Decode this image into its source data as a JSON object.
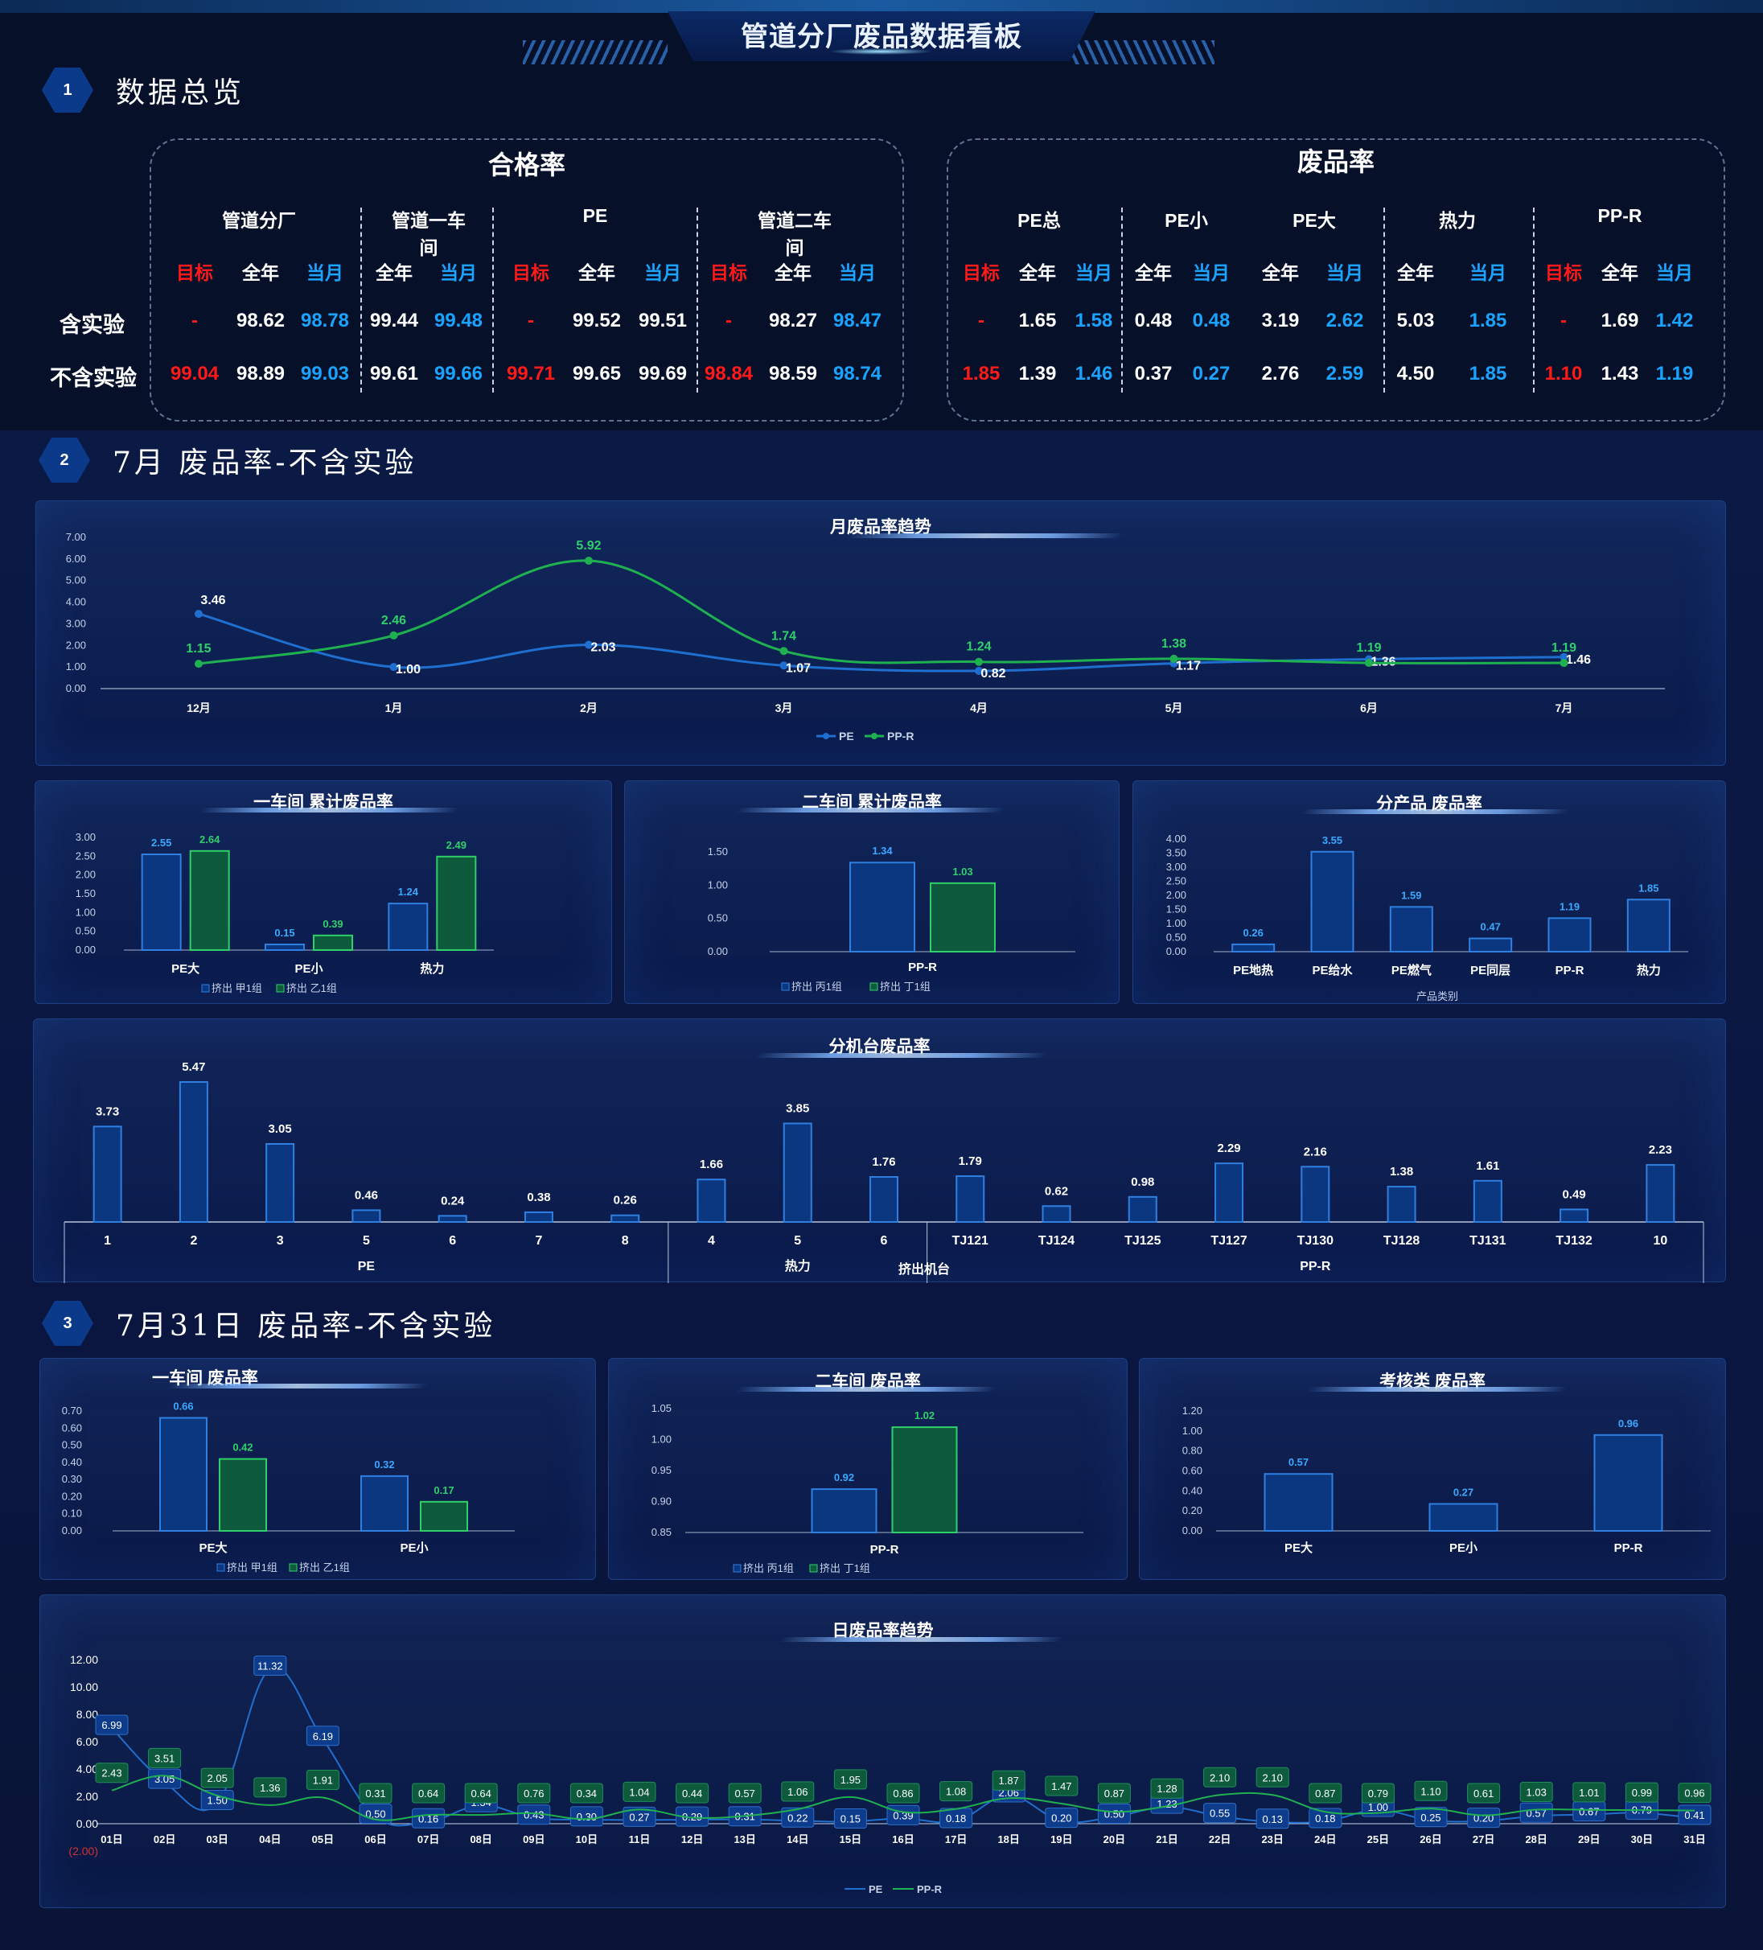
{
  "page": {
    "title": "管道分厂废品数据看板"
  },
  "sections": {
    "s1": {
      "num": "1",
      "title": "数据总览"
    },
    "s2": {
      "num": "2",
      "title": "7月 废品率-不含实验"
    },
    "s3": {
      "num": "3",
      "title": "7月31日 废品率-不含实验"
    }
  },
  "overview": {
    "rows": [
      "含实验",
      "不含实验"
    ],
    "pass": {
      "title": "合格率",
      "groups": [
        "管道分厂",
        "管道一车间",
        "PE",
        "管道二车间"
      ],
      "cols": [
        {
          "h": "目标",
          "c": "red",
          "v": [
            "-",
            "99.04"
          ]
        },
        {
          "h": "全年",
          "c": "white",
          "v": [
            "98.62",
            "98.89"
          ]
        },
        {
          "h": "当月",
          "c": "blue",
          "v": [
            "98.78",
            "99.03"
          ]
        },
        {
          "h": "全年",
          "c": "white",
          "v": [
            "99.44",
            "99.61"
          ]
        },
        {
          "h": "当月",
          "c": "blue",
          "v": [
            "99.48",
            "99.66"
          ]
        },
        {
          "h": "目标",
          "c": "red",
          "v": [
            "-",
            "99.71"
          ]
        },
        {
          "h": "全年",
          "c": "white",
          "v": [
            "99.52",
            "99.65"
          ]
        },
        {
          "h": "当月",
          "c": "white",
          "v": [
            "99.51",
            "99.69"
          ]
        },
        {
          "h": "目标",
          "c": "red",
          "v": [
            "-",
            "98.84"
          ]
        },
        {
          "h": "全年",
          "c": "white",
          "v": [
            "98.27",
            "98.59"
          ]
        },
        {
          "h": "当月",
          "c": "blue",
          "v": [
            "98.47",
            "98.74"
          ]
        }
      ]
    },
    "scrap": {
      "title": "废品率",
      "groups": [
        "PE总",
        "PE小",
        "PE大",
        "热力",
        "PP-R"
      ],
      "cols": [
        {
          "h": "目标",
          "c": "red",
          "v": [
            "-",
            "1.85"
          ]
        },
        {
          "h": "全年",
          "c": "white",
          "v": [
            "1.65",
            "1.39"
          ]
        },
        {
          "h": "当月",
          "c": "blue",
          "v": [
            "1.58",
            "1.46"
          ]
        },
        {
          "h": "全年",
          "c": "white",
          "v": [
            "0.48",
            "0.37"
          ]
        },
        {
          "h": "当月",
          "c": "blue",
          "v": [
            "0.48",
            "0.27"
          ]
        },
        {
          "h": "全年",
          "c": "white",
          "v": [
            "3.19",
            "2.76"
          ]
        },
        {
          "h": "当月",
          "c": "blue",
          "v": [
            "2.62",
            "2.59"
          ]
        },
        {
          "h": "全年",
          "c": "white",
          "v": [
            "5.03",
            "4.50"
          ]
        },
        {
          "h": "当月",
          "c": "blue",
          "v": [
            "1.85",
            "1.85"
          ]
        },
        {
          "h": "目标",
          "c": "red",
          "v": [
            "-",
            "1.10"
          ]
        },
        {
          "h": "全年",
          "c": "white",
          "v": [
            "1.69",
            "1.43"
          ]
        },
        {
          "h": "当月",
          "c": "blue",
          "v": [
            "1.42",
            "1.19"
          ]
        }
      ]
    }
  },
  "chart_data": [
    {
      "id": "monthly",
      "type": "line",
      "title": "月废品率趋势",
      "categories": [
        "12月",
        "1月",
        "2月",
        "3月",
        "4月",
        "5月",
        "6月",
        "7月"
      ],
      "ylim": [
        0,
        7
      ],
      "yticks": [
        "0.00",
        "1.00",
        "2.00",
        "3.00",
        "4.00",
        "5.00",
        "6.00",
        "7.00"
      ],
      "series": [
        {
          "name": "PE",
          "color": "#1f6fd0",
          "values": [
            3.46,
            1.0,
            2.03,
            1.07,
            0.82,
            1.17,
            1.36,
            1.46
          ]
        },
        {
          "name": "PP-R",
          "color": "#1fb050",
          "values": [
            1.15,
            2.46,
            5.92,
            1.74,
            1.24,
            1.38,
            1.19,
            1.19
          ]
        }
      ]
    },
    {
      "id": "ws1",
      "type": "bar",
      "title": "一车间 累计废品率",
      "categories": [
        "PE大",
        "PE小",
        "热力"
      ],
      "ylim": [
        0,
        3
      ],
      "yticks": [
        "0.00",
        "0.50",
        "1.00",
        "1.50",
        "2.00",
        "2.50",
        "3.00"
      ],
      "series": [
        {
          "name": "挤出 甲1组",
          "color": "#1f6fd0",
          "values": [
            2.55,
            0.15,
            1.24
          ]
        },
        {
          "name": "挤出 乙1组",
          "color": "#1fb050",
          "values": [
            2.64,
            0.39,
            2.49
          ]
        }
      ]
    },
    {
      "id": "ws2",
      "type": "bar",
      "title": "二车间 累计废品率",
      "categories": [
        "PP-R"
      ],
      "ylim": [
        0,
        1.5
      ],
      "yticks": [
        "0.00",
        "0.50",
        "1.00",
        "1.50"
      ],
      "series": [
        {
          "name": "挤出 丙1组",
          "color": "#1f6fd0",
          "values": [
            1.34
          ]
        },
        {
          "name": "挤出 丁1组",
          "color": "#1fb050",
          "values": [
            1.03
          ]
        }
      ]
    },
    {
      "id": "prod",
      "type": "bar",
      "title": "分产品 废品率",
      "xlabel": "产品类别",
      "categories": [
        "PE地热",
        "PE给水",
        "PE燃气",
        "PE同层",
        "PP-R",
        "热力"
      ],
      "ylim": [
        0,
        4
      ],
      "yticks": [
        "0.00",
        "0.50",
        "1.00",
        "1.50",
        "2.00",
        "2.50",
        "3.00",
        "3.50",
        "4.00"
      ],
      "series": [
        {
          "color": "#1f6fd0",
          "values": [
            0.26,
            3.55,
            1.59,
            0.47,
            1.19,
            1.85
          ]
        }
      ]
    },
    {
      "id": "machine",
      "type": "bar",
      "title": "分机台废品率",
      "xlabel": "挤出机台",
      "categories": [
        "1",
        "2",
        "3",
        "5",
        "6",
        "7",
        "8",
        "4",
        "5",
        "6",
        "TJ121",
        "TJ124",
        "TJ125",
        "TJ127",
        "TJ130",
        "TJ128",
        "TJ131",
        "TJ132",
        "10"
      ],
      "groups": [
        {
          "name": "PE",
          "from": 0,
          "to": 6
        },
        {
          "name": "热力",
          "from": 7,
          "to": 9
        },
        {
          "name": "PP-R",
          "from": 10,
          "to": 18
        }
      ],
      "ylim": [
        0,
        5.47
      ],
      "series": [
        {
          "color": "#1f6fd0",
          "values": [
            3.73,
            5.47,
            3.05,
            0.46,
            0.24,
            0.38,
            0.26,
            1.66,
            3.85,
            1.76,
            1.79,
            0.62,
            0.98,
            2.29,
            2.16,
            1.38,
            1.61,
            0.49,
            2.23
          ]
        }
      ]
    },
    {
      "id": "d1",
      "type": "bar",
      "title": "一车间 废品率",
      "categories": [
        "PE大",
        "PE小"
      ],
      "ylim": [
        0,
        0.7
      ],
      "yticks": [
        "0.00",
        "0.10",
        "0.20",
        "0.30",
        "0.40",
        "0.50",
        "0.60",
        "0.70"
      ],
      "series": [
        {
          "name": "挤出 甲1组",
          "color": "#1f6fd0",
          "values": [
            0.66,
            0.32
          ]
        },
        {
          "name": "挤出 乙1组",
          "color": "#1fb050",
          "values": [
            0.42,
            0.17
          ]
        }
      ]
    },
    {
      "id": "d2",
      "type": "bar",
      "title": "二车间 废品率",
      "categories": [
        "PP-R"
      ],
      "ylim": [
        0.85,
        1.05
      ],
      "yticks": [
        "0.85",
        "0.90",
        "0.95",
        "1.00",
        "1.05"
      ],
      "series": [
        {
          "name": "挤出 丙1组",
          "color": "#1f6fd0",
          "values": [
            0.92
          ]
        },
        {
          "name": "挤出 丁1组",
          "color": "#1fb050",
          "values": [
            1.02
          ]
        }
      ]
    },
    {
      "id": "d3",
      "type": "bar",
      "title": "考核类 废品率",
      "categories": [
        "PE大",
        "PE小",
        "PP-R"
      ],
      "ylim": [
        0,
        1.2
      ],
      "yticks": [
        "0.00",
        "0.20",
        "0.40",
        "0.60",
        "0.80",
        "1.00",
        "1.20"
      ],
      "series": [
        {
          "color": "#1f6fd0",
          "values": [
            0.57,
            0.27,
            0.96
          ]
        }
      ]
    },
    {
      "id": "daily",
      "type": "line",
      "title": "日废品率趋势",
      "categories": [
        "01日",
        "02日",
        "03日",
        "04日",
        "05日",
        "06日",
        "07日",
        "08日",
        "09日",
        "10日",
        "11日",
        "12日",
        "13日",
        "14日",
        "15日",
        "16日",
        "17日",
        "18日",
        "19日",
        "20日",
        "21日",
        "22日",
        "23日",
        "24日",
        "25日",
        "26日",
        "27日",
        "28日",
        "29日",
        "30日",
        "31日"
      ],
      "ylim": [
        -2,
        12
      ],
      "yticks": [
        "12.00",
        "10.00",
        "8.00",
        "6.00",
        "4.00",
        "2.00",
        "0.00",
        "(2.00)"
      ],
      "series": [
        {
          "name": "PE",
          "color": "#1f6fd0",
          "values": [
            6.99,
            3.05,
            1.5,
            11.32,
            6.19,
            0.5,
            0.16,
            1.34,
            0.43,
            0.3,
            0.27,
            0.29,
            0.31,
            0.22,
            0.15,
            0.39,
            0.18,
            2.06,
            0.2,
            0.5,
            1.23,
            0.55,
            0.13,
            0.18,
            1.0,
            0.25,
            0.2,
            0.57,
            0.67,
            0.79,
            0.41
          ]
        },
        {
          "name": "PP-R",
          "color": "#1fb050",
          "values": [
            2.43,
            3.51,
            2.05,
            1.36,
            1.91,
            0.31,
            0.64,
            0.64,
            0.76,
            0.34,
            1.04,
            0.44,
            0.57,
            1.06,
            1.95,
            0.86,
            1.08,
            1.87,
            1.47,
            0.87,
            1.28,
            2.1,
            2.1,
            0.87,
            0.79,
            1.1,
            0.61,
            1.03,
            1.01,
            0.99,
            0.96
          ]
        }
      ]
    }
  ]
}
